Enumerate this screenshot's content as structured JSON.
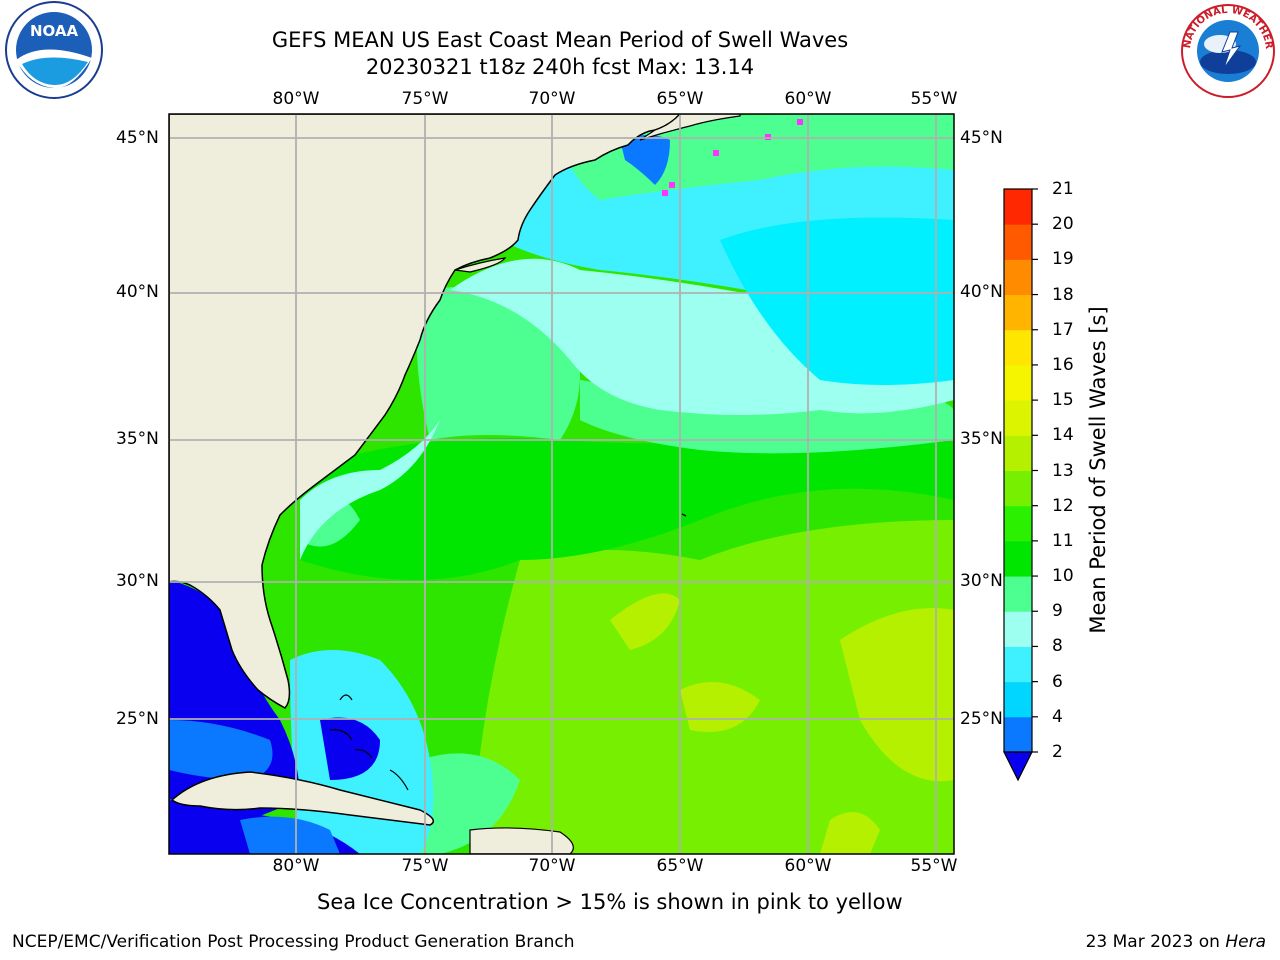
{
  "title": {
    "line1": "GEFS MEAN US East Coast Mean Period of Swell Waves",
    "line2": "20230321 t18z 240h fcst   Max: 13.14"
  },
  "map": {
    "lon_labels": [
      "80°W",
      "75°W",
      "70°W",
      "65°W",
      "60°W",
      "55°W"
    ],
    "lat_labels": [
      "45°N",
      "40°N",
      "35°N",
      "30°N",
      "25°N"
    ],
    "land_color": "#efeedd",
    "grid_color": "#b0b0b0"
  },
  "colorbar": {
    "title": "Mean Period of Swell Waves [s]",
    "ticks": [
      "2",
      "4",
      "6",
      "8",
      "9",
      "10",
      "11",
      "12",
      "13",
      "14",
      "15",
      "16",
      "17",
      "18",
      "19",
      "20",
      "21"
    ],
    "colors": [
      "#0a78ff",
      "#00d6ff",
      "#3ff0ff",
      "#9cfff0",
      "#4dff90",
      "#00e600",
      "#2bf000",
      "#76f000",
      "#b4f000",
      "#dcf400",
      "#f5f500",
      "#ffe600",
      "#ffb400",
      "#ff8c00",
      "#ff5a00",
      "#ff2800"
    ],
    "under_color": "#0a00f0"
  },
  "ice_note": "Sea Ice Concentration > 15% is shown in pink to yellow",
  "footer": {
    "left": "NCEP/EMC/Verification Post Processing Product Generation Branch",
    "date": "23 Mar 2023 on ",
    "machine": "Hera"
  },
  "logos": {
    "noaa_text": "NOAA",
    "nws_text": "NATIONAL WEATHER SERVICE"
  }
}
